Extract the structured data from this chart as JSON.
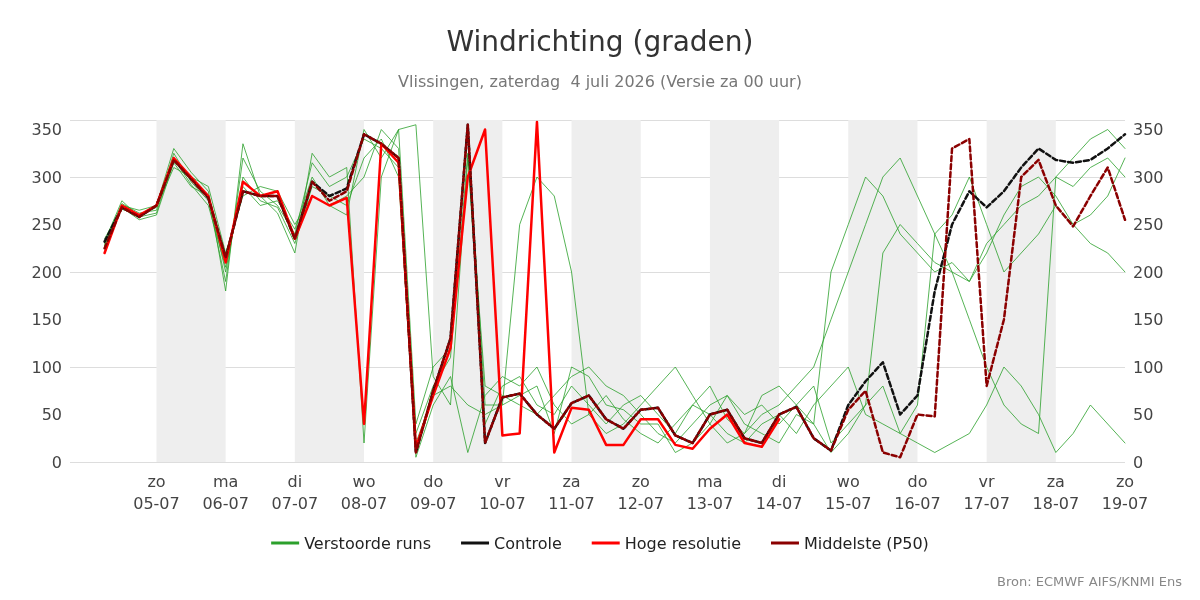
{
  "chart_data": {
    "type": "line",
    "title": "Windrichting (graden)",
    "subtitle": "Vlissingen, zaterdag  4 juli 2026 (Versie za 00 uur)",
    "x": [
      "2026-07-04T06:00",
      "2026-07-04T12:00",
      "2026-07-04T18:00",
      "2026-07-05T00:00",
      "2026-07-05T06:00",
      "2026-07-05T12:00",
      "2026-07-05T18:00",
      "2026-07-06T00:00",
      "2026-07-06T06:00",
      "2026-07-06T12:00",
      "2026-07-06T18:00",
      "2026-07-07T00:00",
      "2026-07-07T06:00",
      "2026-07-07T12:00",
      "2026-07-07T18:00",
      "2026-07-08T00:00",
      "2026-07-08T06:00",
      "2026-07-08T12:00",
      "2026-07-08T18:00",
      "2026-07-09T00:00",
      "2026-07-09T06:00",
      "2026-07-09T12:00",
      "2026-07-09T18:00",
      "2026-07-10T00:00",
      "2026-07-10T06:00",
      "2026-07-10T12:00",
      "2026-07-10T18:00",
      "2026-07-11T00:00",
      "2026-07-11T06:00",
      "2026-07-11T12:00",
      "2026-07-11T18:00",
      "2026-07-12T00:00",
      "2026-07-12T06:00",
      "2026-07-12T12:00",
      "2026-07-12T18:00",
      "2026-07-13T00:00",
      "2026-07-13T06:00",
      "2026-07-13T12:00",
      "2026-07-13T18:00",
      "2026-07-14T00:00",
      "2026-07-14T06:00",
      "2026-07-14T12:00",
      "2026-07-14T18:00",
      "2026-07-15T00:00",
      "2026-07-15T06:00",
      "2026-07-15T12:00",
      "2026-07-15T18:00",
      "2026-07-16T00:00",
      "2026-07-16T06:00",
      "2026-07-16T12:00",
      "2026-07-16T18:00",
      "2026-07-17T00:00",
      "2026-07-17T06:00",
      "2026-07-17T12:00",
      "2026-07-17T18:00",
      "2026-07-18T00:00",
      "2026-07-18T06:00",
      "2026-07-18T12:00",
      "2026-07-18T18:00",
      "2026-07-19T00:00"
    ],
    "series": [
      {
        "name": "Verstoorde runs",
        "color": "#2ca02c",
        "line_style": "solid",
        "values": [
          230,
          272,
          262,
          265,
          325,
          295,
          275,
          190,
          320,
          285,
          270,
          240,
          315,
          290,
          300,
          340,
          330,
          310,
          30,
          80,
          110,
          325,
          40,
          80,
          90,
          60,
          50,
          80,
          60,
          40,
          60,
          70,
          50,
          30,
          60,
          80,
          45,
          30,
          70,
          80,
          60,
          40,
          200,
          250,
          300,
          280,
          240,
          220,
          200,
          210,
          190,
          230,
          250,
          270,
          280,
          300,
          290,
          310,
          320,
          300
        ]
      },
      {
        "color": "#2ca02c",
        "line_style": "solid",
        "values": [
          235,
          268,
          255,
          260,
          315,
          290,
          280,
          200,
          300,
          275,
          268,
          230,
          290,
          280,
          270,
          320,
          340,
          300,
          5,
          60,
          90,
          10,
          70,
          90,
          80,
          100,
          60,
          40,
          50,
          70,
          45,
          30,
          20,
          40,
          60,
          50,
          30,
          20,
          40,
          50,
          30,
          60,
          80,
          100,
          50,
          40,
          30,
          60,
          240,
          260,
          300,
          250,
          200,
          220,
          240,
          270,
          250,
          260,
          280,
          320
        ]
      },
      {
        "color": "#2ca02c",
        "line_style": "solid",
        "values": [
          228,
          270,
          265,
          270,
          330,
          305,
          285,
          180,
          335,
          280,
          262,
          220,
          325,
          300,
          310,
          20,
          300,
          350,
          40,
          100,
          120,
          350,
          60,
          60,
          70,
          80,
          30,
          100,
          90,
          60,
          55,
          40,
          40,
          10,
          20,
          40,
          70,
          50,
          60,
          40,
          60,
          80,
          20,
          40,
          60,
          80,
          30,
          20,
          10,
          20,
          30,
          60,
          100,
          80,
          50,
          10,
          30,
          60,
          40,
          20
        ]
      },
      {
        "color": "#2ca02c",
        "line_style": "solid",
        "values": [
          232,
          275,
          258,
          262,
          320,
          292,
          270,
          205,
          290,
          270,
          275,
          245,
          300,
          270,
          260,
          350,
          320,
          350,
          355,
          90,
          60,
          320,
          80,
          70,
          60,
          50,
          70,
          90,
          100,
          80,
          70,
          50,
          30,
          20,
          40,
          60,
          70,
          40,
          30,
          20,
          50,
          40,
          10,
          30,
          60,
          220,
          250,
          230,
          210,
          200,
          190,
          220,
          260,
          290,
          300,
          280,
          250,
          230,
          220,
          200
        ]
      },
      {
        "color": "#2ca02c",
        "line_style": "solid",
        "values": [
          228,
          266,
          260,
          268,
          310,
          300,
          290,
          220,
          280,
          290,
          285,
          250,
          280,
          270,
          280,
          300,
          350,
          330,
          20,
          70,
          80,
          60,
          50,
          60,
          250,
          300,
          280,
          200,
          50,
          30,
          40,
          60,
          80,
          100,
          70,
          40,
          20,
          30,
          50,
          60,
          80,
          100,
          150,
          200,
          250,
          300,
          320,
          280,
          240,
          200,
          150,
          100,
          60,
          40,
          30,
          300,
          320,
          340,
          350,
          330
        ]
      },
      {
        "name": "Controle",
        "color": "#111111",
        "line_style": "dashed",
        "values": [
          232,
          268,
          258,
          270,
          318,
          298,
          278,
          215,
          285,
          280,
          280,
          235,
          295,
          280,
          288,
          345,
          335,
          320,
          10,
          75,
          130,
          355,
          20,
          68,
          72,
          50,
          35,
          62,
          70,
          45,
          35,
          55,
          57,
          28,
          20,
          50,
          55,
          25,
          20,
          50,
          58,
          25,
          12,
          60,
          85,
          105,
          50,
          70,
          180,
          250,
          285,
          268,
          285,
          310,
          330,
          318,
          315,
          318,
          330,
          345
        ]
      },
      {
        "name": "Hoge resolutie",
        "color": "#ff0000",
        "line_style": "solid",
        "values": [
          220,
          270,
          260,
          270,
          320,
          300,
          280,
          210,
          295,
          280,
          285,
          235,
          280,
          270,
          278,
          40,
          335,
          315,
          15,
          70,
          120,
          300,
          350,
          28,
          30,
          358,
          10,
          57,
          55,
          18,
          18,
          45,
          45,
          18,
          14,
          35,
          50,
          20,
          16,
          45,
          null,
          null,
          null,
          null,
          null,
          null,
          null,
          null,
          null,
          null,
          null,
          null,
          null,
          null,
          null,
          null,
          null,
          null,
          null,
          null
        ]
      },
      {
        "name": "Middelste (P50)",
        "color": "#8b0000",
        "line_style": "dashed",
        "values": [
          225,
          268,
          258,
          270,
          318,
          298,
          278,
          215,
          285,
          280,
          280,
          235,
          295,
          275,
          285,
          345,
          335,
          320,
          10,
          75,
          130,
          355,
          20,
          68,
          72,
          50,
          35,
          62,
          70,
          45,
          35,
          55,
          57,
          28,
          20,
          50,
          55,
          25,
          20,
          50,
          58,
          25,
          12,
          55,
          75,
          10,
          5,
          50,
          48,
          330,
          340,
          80,
          150,
          300,
          318,
          270,
          248,
          280,
          310,
          255
        ]
      }
    ],
    "xlim": [
      "2026-07-03T18:00",
      "2026-07-19T00:00"
    ],
    "xticks": [
      {
        "value": "2026-07-05",
        "label": "zo\n05-07"
      },
      {
        "value": "2026-07-06",
        "label": "ma\n06-07"
      },
      {
        "value": "2026-07-07",
        "label": "di\n07-07"
      },
      {
        "value": "2026-07-08",
        "label": "wo\n08-07"
      },
      {
        "value": "2026-07-09",
        "label": "do\n09-07"
      },
      {
        "value": "2026-07-10",
        "label": "vr\n10-07"
      },
      {
        "value": "2026-07-11",
        "label": "za\n11-07"
      },
      {
        "value": "2026-07-12",
        "label": "zo\n12-07"
      },
      {
        "value": "2026-07-13",
        "label": "ma\n13-07"
      },
      {
        "value": "2026-07-14",
        "label": "di\n14-07"
      },
      {
        "value": "2026-07-15",
        "label": "wo\n15-07"
      },
      {
        "value": "2026-07-16",
        "label": "do\n16-07"
      },
      {
        "value": "2026-07-17",
        "label": "vr\n17-07"
      },
      {
        "value": "2026-07-18",
        "label": "za\n18-07"
      },
      {
        "value": "2026-07-19",
        "label": "zo\n19-07"
      }
    ],
    "ylim": [
      0,
      360
    ],
    "yticks": [
      0,
      50,
      100,
      150,
      200,
      250,
      300,
      350
    ],
    "y2lim": [
      0,
      360
    ],
    "y2ticks": [
      0,
      50,
      100,
      150,
      200,
      250,
      300,
      350
    ],
    "bands": [
      {
        "axis": "x",
        "from": "2026-07-05",
        "to": "2026-07-06",
        "color": "#eeeeee"
      },
      {
        "axis": "x",
        "from": "2026-07-07",
        "to": "2026-07-08",
        "color": "#eeeeee"
      },
      {
        "axis": "x",
        "from": "2026-07-09",
        "to": "2026-07-10",
        "color": "#eeeeee"
      },
      {
        "axis": "x",
        "from": "2026-07-11",
        "to": "2026-07-12",
        "color": "#eeeeee"
      },
      {
        "axis": "x",
        "from": "2026-07-13",
        "to": "2026-07-14",
        "color": "#eeeeee"
      },
      {
        "axis": "x",
        "from": "2026-07-15",
        "to": "2026-07-16",
        "color": "#eeeeee"
      },
      {
        "axis": "x",
        "from": "2026-07-17",
        "to": "2026-07-18",
        "color": "#eeeeee"
      }
    ],
    "grid": "y",
    "legend": "bottom",
    "marker": "none",
    "annotations": [
      "Bron: ECMWF AIFS/KNMI Ens"
    ]
  }
}
